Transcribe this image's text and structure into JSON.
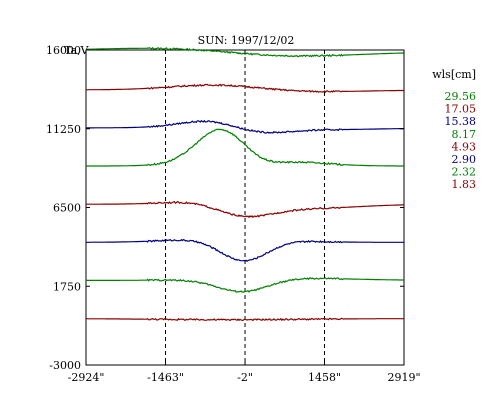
{
  "chart_data": {
    "type": "line",
    "title": "SUN: 1997/12/02",
    "ylabel": "Ta,V",
    "xlabel": "",
    "xlim": [
      -2924,
      2919
    ],
    "ylim": [
      -3000,
      16000
    ],
    "x_ticks": [
      -2924,
      -1463,
      -2,
      1458,
      2919
    ],
    "x_tick_labels": [
      "-2924\"",
      "-1463\"",
      "-2\"",
      "1458\"",
      "2919\""
    ],
    "y_ticks": [
      16000,
      11250,
      6500,
      1750,
      -3000
    ],
    "y_tick_labels": [
      "16000",
      "11250",
      "6500",
      "1750",
      "-3000"
    ],
    "vlines": [
      -1463,
      -2,
      1458
    ],
    "vline_style": "dashed",
    "grid": false,
    "legend_title": "wls[cm]",
    "legend_position": "right",
    "series": [
      {
        "name": "29.56",
        "color": "#008000",
        "baseline": 15900,
        "bumps": [
          [
            -2200,
            130,
            0.0005
          ],
          [
            -700,
            220,
            0.0006
          ],
          [
            300,
            -220,
            0.0006
          ],
          [
            1000,
            -160,
            0.0005
          ]
        ]
      },
      {
        "name": "17.05",
        "color": "#8b0000",
        "baseline": 13600,
        "bumps": [
          [
            -450,
            500,
            0.0008
          ],
          [
            -100,
            -250,
            0.0006
          ],
          [
            350,
            180,
            0.0005
          ],
          [
            800,
            -200,
            0.0005
          ]
        ]
      },
      {
        "name": "15.38",
        "color": "#000080",
        "baseline": 11300,
        "bumps": [
          [
            -400,
            900,
            0.0012
          ],
          [
            -50,
            -800,
            0.0012
          ],
          [
            400,
            250,
            0.0006
          ],
          [
            850,
            -300,
            0.0006
          ]
        ]
      },
      {
        "name": "8.17",
        "color": "#008000",
        "baseline": 9000,
        "bumps": [
          [
            -300,
            3600,
            0.0015
          ],
          [
            -80,
            -2200,
            0.0015
          ],
          [
            150,
            500,
            0.0008
          ]
        ]
      },
      {
        "name": "4.93",
        "color": "#8b0000",
        "baseline": 6700,
        "bumps": [
          [
            -300,
            600,
            0.001
          ],
          [
            -80,
            -1100,
            0.0013
          ],
          [
            900,
            -300,
            0.0007
          ]
        ]
      },
      {
        "name": "2.90",
        "color": "#000080",
        "baseline": 4400,
        "bumps": [
          [
            -250,
            300,
            0.0008
          ],
          [
            -30,
            -1400,
            0.0016
          ]
        ]
      },
      {
        "name": "2.32",
        "color": "#008000",
        "baseline": 2100,
        "bumps": [
          [
            -40,
            -800,
            0.0015
          ],
          [
            700,
            150,
            0.0006
          ]
        ]
      },
      {
        "name": "1.83",
        "color": "#8b0000",
        "baseline": -200,
        "bumps": [
          [
            -900,
            -40,
            0.0006
          ],
          [
            400,
            -40,
            0.0006
          ]
        ]
      }
    ]
  }
}
